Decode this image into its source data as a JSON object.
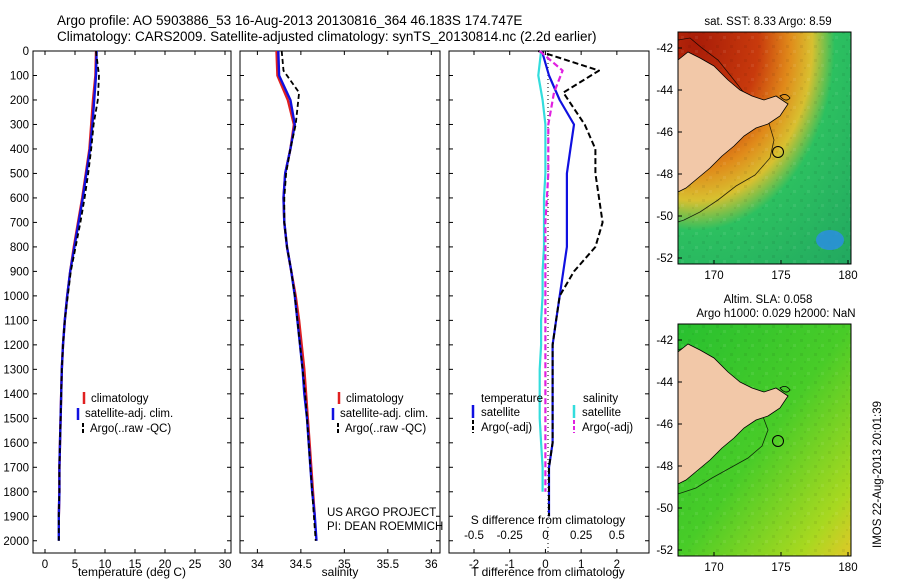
{
  "header": {
    "line1": "Argo profile: AO 5903886_53 16-Aug-2013 20130816_364 46.183S 174.747E",
    "line2": "Climatology: CARS2009. Satellite-adjusted climatology: synTS_20130814.nc (2.2d earlier)"
  },
  "colors": {
    "climatology": "#e02020",
    "satellite": "#1010e0",
    "argo": "#000000",
    "sal_satellite": "#33dddd",
    "sal_argo": "#e020e0"
  },
  "panels": {
    "temperature": {
      "xlabel": "temperature (deg C)",
      "xticks": [
        "0",
        "5",
        "10",
        "15",
        "20",
        "25",
        "30"
      ]
    },
    "salinity": {
      "xlabel": "salinity",
      "xticks": [
        "34",
        "34.5",
        "35",
        "35.5",
        "36"
      ]
    },
    "difference": {
      "xlabel": "T difference from climatology",
      "xlabel_top": "S difference from climatology",
      "xticks": [
        "-2",
        "-1",
        "0",
        "1",
        "2"
      ],
      "xticks_top": [
        "-0.5",
        "-0.25",
        "0",
        "0.25",
        "0.5"
      ]
    }
  },
  "yticks": [
    "0",
    "100",
    "200",
    "300",
    "400",
    "500",
    "600",
    "700",
    "800",
    "900",
    "1000",
    "1100",
    "1200",
    "1300",
    "1400",
    "1500",
    "1600",
    "1700",
    "1800",
    "1900",
    "2000"
  ],
  "legend_main": [
    "climatology",
    "satellite-adj. clim.",
    "Argo(..raw -QC)"
  ],
  "legend_diff": {
    "temperature": "temperature",
    "salinity": "salinity",
    "t_items": [
      "satellite",
      "Argo(-adj)"
    ],
    "s_items": [
      "satellite",
      "Argo(-adj)"
    ]
  },
  "credit": [
    "US ARGO PROJECT",
    "PI: DEAN ROEMMICH"
  ],
  "maps": {
    "sst": {
      "title": "sat. SST: 8.33  Argo: 8.59",
      "yticks": [
        "-42",
        "-44",
        "-46",
        "-48",
        "-50",
        "-52"
      ],
      "xticks": [
        "170",
        "175",
        "180"
      ]
    },
    "sla": {
      "title1": "Altim. SLA: 0.058",
      "title2": "Argo h1000: 0.029  h2000: NaN",
      "yticks": [
        "-42",
        "-44",
        "-46",
        "-48",
        "-50",
        "-52"
      ],
      "xticks": [
        "170",
        "175",
        "180"
      ]
    }
  },
  "stamp": "IMOS 22-Aug-2013 20:01:39",
  "chart_data": [
    {
      "type": "line",
      "name": "temperature",
      "xlabel": "temperature (deg C)",
      "ylabel": "",
      "xlim": [
        -2,
        31
      ],
      "ylim": [
        2050,
        0
      ],
      "series": [
        {
          "name": "climatology",
          "x": [
            8.5,
            8.4,
            8.0,
            7.7,
            7.4,
            6.8,
            6.2,
            5.5,
            4.8,
            4.2,
            3.7,
            3.3,
            3.0,
            2.8,
            2.7,
            2.6,
            2.5,
            2.4,
            2.4,
            2.3
          ],
          "y": [
            0,
            100,
            200,
            300,
            400,
            500,
            600,
            700,
            800,
            900,
            1000,
            1100,
            1200,
            1300,
            1400,
            1500,
            1600,
            1700,
            1800,
            1900
          ]
        },
        {
          "name": "satellite-adj. clim.",
          "x": [
            8.6,
            8.5,
            8.2,
            7.9,
            7.5,
            6.9,
            6.3,
            5.6,
            4.9,
            4.2,
            3.7,
            3.3,
            3.0,
            2.8,
            2.7,
            2.6,
            2.5,
            2.4,
            2.4,
            2.3,
            2.3
          ],
          "y": [
            0,
            100,
            200,
            300,
            400,
            500,
            600,
            700,
            800,
            900,
            1000,
            1100,
            1200,
            1300,
            1400,
            1500,
            1600,
            1700,
            1800,
            1900,
            2000
          ]
        },
        {
          "name": "Argo(..raw -QC)",
          "x": [
            8.5,
            9.0,
            8.8,
            8.1,
            7.7,
            7.2,
            6.6,
            5.9,
            5.1,
            4.3,
            3.8,
            3.3,
            3.0,
            2.8,
            2.7,
            2.6,
            2.5,
            2.4,
            2.4,
            2.3,
            2.3
          ],
          "y": [
            0,
            100,
            200,
            300,
            400,
            500,
            600,
            700,
            800,
            900,
            1000,
            1100,
            1200,
            1300,
            1400,
            1500,
            1600,
            1700,
            1800,
            1900,
            2000
          ]
        }
      ]
    },
    {
      "type": "line",
      "name": "salinity",
      "xlabel": "salinity",
      "ylabel": "",
      "xlim": [
        33.8,
        36.1
      ],
      "ylim": [
        2050,
        0
      ],
      "series": [
        {
          "name": "climatology",
          "x": [
            34.22,
            34.23,
            34.35,
            34.42,
            34.38,
            34.32,
            34.3,
            34.31,
            34.34,
            34.39,
            34.44,
            34.48,
            34.51,
            34.54,
            34.56,
            34.58,
            34.6,
            34.62,
            34.64,
            34.66
          ],
          "y": [
            0,
            100,
            200,
            300,
            400,
            500,
            600,
            700,
            800,
            900,
            1000,
            1100,
            1200,
            1300,
            1400,
            1500,
            1600,
            1700,
            1800,
            1900
          ]
        },
        {
          "name": "satellite-adj. clim.",
          "x": [
            34.24,
            34.25,
            34.38,
            34.43,
            34.38,
            34.32,
            34.3,
            34.31,
            34.34,
            34.39,
            34.43,
            34.46,
            34.49,
            34.52,
            34.54,
            34.57,
            34.59,
            34.61,
            34.63,
            34.66,
            34.68
          ],
          "y": [
            0,
            100,
            200,
            300,
            400,
            500,
            600,
            700,
            800,
            900,
            1000,
            1100,
            1200,
            1300,
            1400,
            1500,
            1600,
            1700,
            1800,
            1900,
            2000
          ]
        },
        {
          "name": "Argo(..raw -QC)",
          "x": [
            34.28,
            34.3,
            34.48,
            34.44,
            34.38,
            34.33,
            34.31,
            34.31,
            34.34,
            34.39,
            34.43,
            34.46,
            34.49,
            34.52,
            34.55,
            34.57,
            34.59,
            34.61,
            34.63,
            34.65,
            34.67
          ],
          "y": [
            0,
            80,
            170,
            300,
            400,
            500,
            600,
            700,
            800,
            900,
            1000,
            1100,
            1200,
            1300,
            1400,
            1500,
            1600,
            1700,
            1800,
            1900,
            2000
          ]
        }
      ]
    },
    {
      "type": "line",
      "name": "difference",
      "xlabel": "T difference from climatology",
      "xlabel_top": "S difference from climatology",
      "xlim": [
        -2.7,
        2.9
      ],
      "ylim": [
        2050,
        0
      ],
      "series": [
        {
          "name": "temperature satellite",
          "x": [
            -0.1,
            0.1,
            0.4,
            0.8,
            0.7,
            0.6,
            0.6,
            0.6,
            0.6,
            0.5,
            0.4,
            0.3,
            0.2,
            0.2,
            0.2,
            0.2,
            0.2,
            0.1,
            0.1,
            0.1
          ],
          "y": [
            0,
            100,
            200,
            300,
            400,
            500,
            600,
            700,
            800,
            900,
            1000,
            1100,
            1200,
            1300,
            1400,
            1500,
            1600,
            1700,
            1800,
            1900
          ]
        },
        {
          "name": "temperature Argo(-adj)",
          "x": [
            -0.2,
            1.5,
            0.5,
            1.1,
            1.4,
            1.4,
            1.5,
            1.6,
            1.4,
            0.8,
            0.4,
            0.3,
            0.2,
            0.2,
            0.2,
            0.2,
            0.2,
            0.1,
            0.1,
            0.1
          ],
          "y": [
            0,
            80,
            170,
            300,
            400,
            500,
            600,
            700,
            800,
            900,
            1000,
            1100,
            1200,
            1300,
            1400,
            1500,
            1600,
            1700,
            1800,
            1900
          ]
        },
        {
          "name": "salinity satellite",
          "x": [
            -0.03,
            -0.05,
            -0.02,
            0.0,
            0.0,
            0.0,
            -0.01,
            -0.01,
            -0.01,
            -0.02,
            -0.02,
            -0.03,
            -0.03,
            -0.04,
            -0.04,
            -0.04,
            -0.03,
            -0.02,
            -0.02
          ],
          "y": [
            0,
            100,
            200,
            300,
            400,
            500,
            600,
            700,
            800,
            900,
            1000,
            1100,
            1200,
            1300,
            1400,
            1500,
            1600,
            1700,
            1800
          ]
        },
        {
          "name": "salinity Argo(-adj)",
          "x": [
            -0.04,
            0.12,
            0.06,
            0.02,
            0.02,
            0.02,
            0.01,
            0.0,
            0.0,
            0.0,
            0.0,
            0.0,
            0.0,
            0.0,
            0.0,
            0.0,
            0.0,
            0.0,
            0.0
          ],
          "y": [
            0,
            80,
            170,
            300,
            400,
            500,
            600,
            700,
            800,
            900,
            1000,
            1100,
            1200,
            1300,
            1400,
            1500,
            1600,
            1700,
            1800
          ]
        }
      ]
    }
  ]
}
